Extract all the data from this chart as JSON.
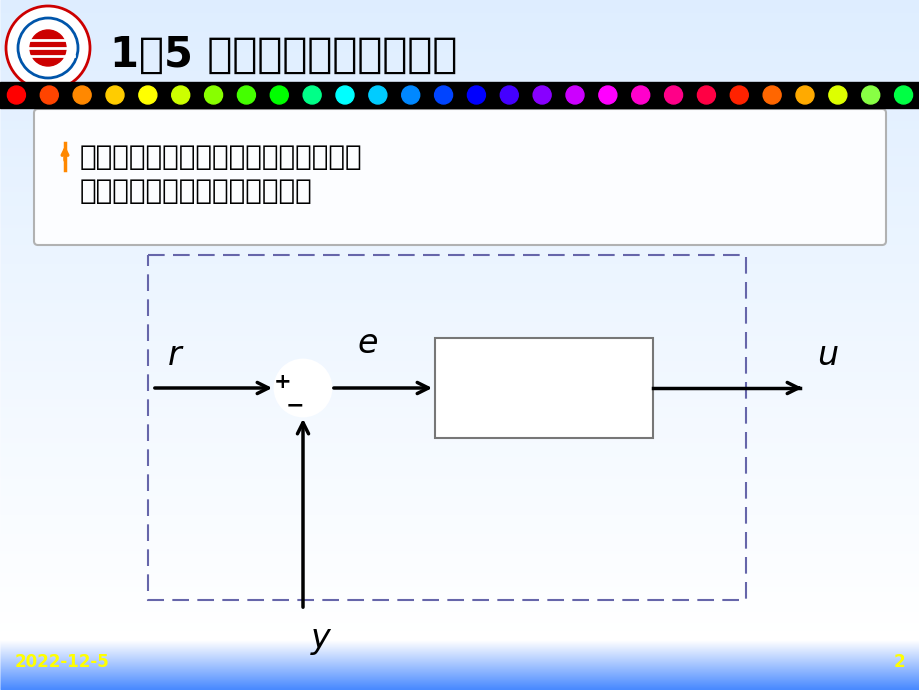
{
  "title": "1、5 控制器的模拟控制算法",
  "text_box_lines": [
    "常规控制器的组成：给定値设定机构，",
    "偏差比较机构，控制运算模块。"
  ],
  "date_text": "2022-12-5",
  "page_num": "2",
  "dot_colors": [
    "#ff0000",
    "#ff4400",
    "#ff8800",
    "#ffcc00",
    "#ffff00",
    "#ccff00",
    "#88ff00",
    "#44ff00",
    "#00ff00",
    "#00ff88",
    "#00ffff",
    "#00ccff",
    "#0088ff",
    "#0044ff",
    "#0000ff",
    "#4400ff",
    "#8800ff",
    "#cc00ff",
    "#ff00ff",
    "#ff00cc",
    "#ff0088",
    "#ff0044",
    "#ff2200",
    "#ff6600",
    "#ffaa00",
    "#ddff00",
    "#88ff44",
    "#00ff44"
  ],
  "signal_label_r": "r",
  "signal_label_e": "e",
  "signal_label_u": "u",
  "signal_label_y": "y",
  "plus_sign": "+",
  "minus_sign": "−"
}
